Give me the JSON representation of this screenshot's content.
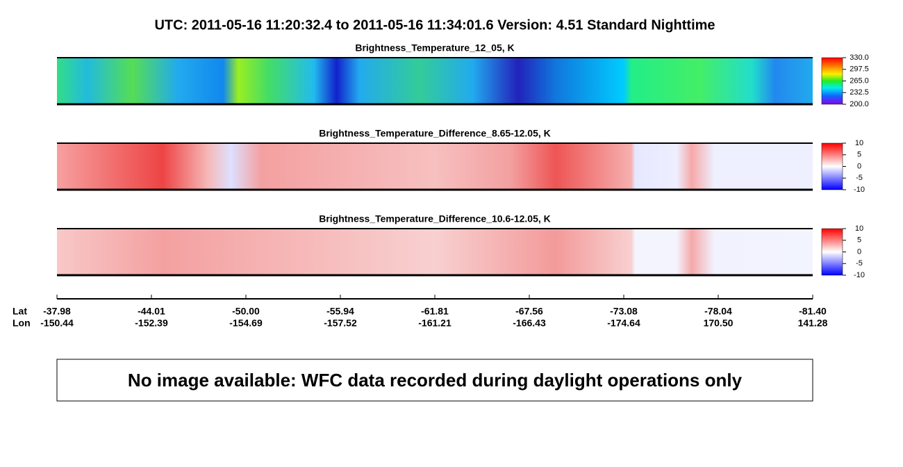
{
  "header": {
    "title": "UTC:  2011-05-16   11:20:32.4  to  2011-05-16   11:34:01.6    Version: 4.51  Standard Nighttime"
  },
  "panels": [
    {
      "title": "Brightness_Temperature_12_05, K",
      "colorbar_ticks": [
        "330.0",
        "297.5",
        "265.0",
        "232.5",
        "200.0"
      ]
    },
    {
      "title": "Brightness_Temperature_Difference_8.65-12.05, K",
      "colorbar_ticks": [
        "10",
        "5",
        "0",
        "-5",
        "-10"
      ]
    },
    {
      "title": "Brightness_Temperature_Difference_10.6-12.05, K",
      "colorbar_ticks": [
        "10",
        "5",
        "0",
        "-5",
        "-10"
      ]
    }
  ],
  "axis": {
    "row_labels": [
      "Lat",
      "Lon"
    ],
    "lat": [
      "-37.98",
      "-44.01",
      "-50.00",
      "-55.94",
      "-61.81",
      "-67.56",
      "-73.08",
      "-78.04",
      "-81.40"
    ],
    "lon": [
      "-150.44",
      "-152.39",
      "-154.69",
      "-157.52",
      "-161.21",
      "-166.43",
      "-174.64",
      "170.50",
      "141.28"
    ]
  },
  "notice": "No image available: WFC data recorded during daylight operations only"
}
